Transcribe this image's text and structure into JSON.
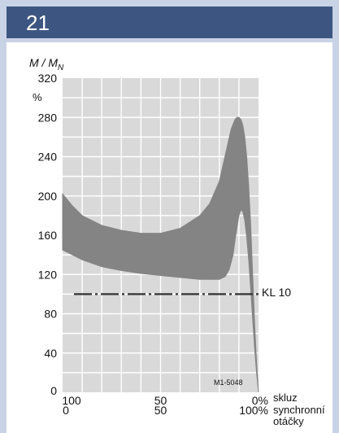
{
  "header": {
    "number": "21"
  },
  "chart_data": {
    "type": "area",
    "ylabel_main": "M / M",
    "ylabel_sub": "N",
    "yunit": "%",
    "ylim": [
      0,
      320
    ],
    "yticks": [
      0,
      40,
      80,
      120,
      160,
      200,
      240,
      280,
      320
    ],
    "x_top_ticks": [
      "100",
      "50",
      "0%"
    ],
    "x_bottom_ticks": [
      "0",
      "50",
      "100%"
    ],
    "x_label_slip": "skluz",
    "x_label_speed": "synchronní",
    "x_label_speed2": "otáčky",
    "xlim_speed_percent": [
      0,
      100
    ],
    "grid": true,
    "band_color": "#848484",
    "series": [
      {
        "role": "band-upper",
        "x": [
          0,
          5,
          10,
          20,
          30,
          40,
          50,
          60,
          70,
          75,
          80,
          84,
          86,
          88,
          89,
          90,
          91,
          92,
          93,
          94,
          95,
          96,
          97,
          98,
          99,
          100
        ],
        "y": [
          202,
          190,
          180,
          170,
          165,
          162,
          162,
          167,
          180,
          192,
          215,
          250,
          268,
          278,
          280,
          280,
          278,
          272,
          260,
          240,
          210,
          170,
          120,
          70,
          30,
          0
        ]
      },
      {
        "role": "band-lower",
        "x": [
          0,
          5,
          10,
          20,
          30,
          40,
          50,
          60,
          70,
          75,
          80,
          83,
          85,
          87,
          88,
          89,
          90,
          91,
          92,
          93,
          94,
          95,
          96,
          97,
          98,
          99,
          100
        ],
        "y": [
          145,
          140,
          135,
          128,
          124,
          121,
          119,
          117,
          115,
          115,
          115,
          118,
          125,
          140,
          155,
          168,
          180,
          186,
          184,
          175,
          158,
          135,
          105,
          75,
          45,
          20,
          0
        ]
      }
    ],
    "reference_line": {
      "label": "KL 10",
      "y": 100
    },
    "annotation": "M1-5048"
  }
}
